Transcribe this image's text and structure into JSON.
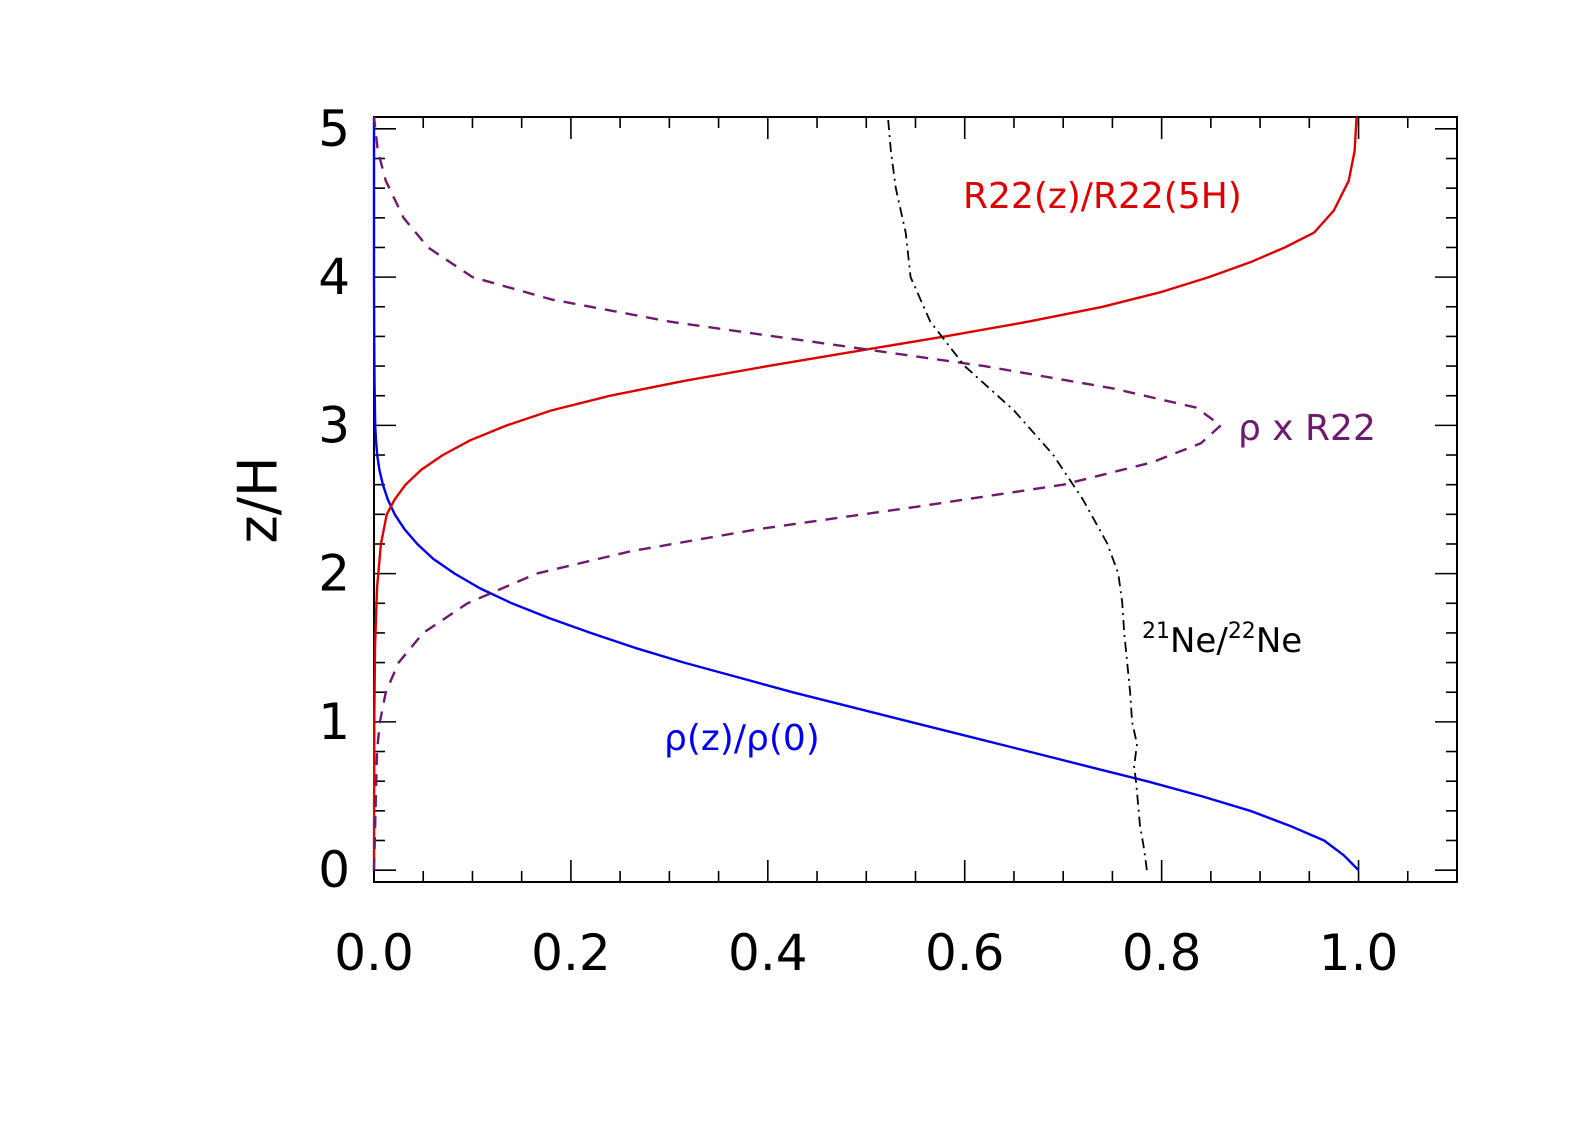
{
  "chart_data": {
    "type": "line",
    "title": "",
    "xlabel": "",
    "ylabel": "z/H",
    "xlim": [
      0.0,
      1.1
    ],
    "ylim": [
      -0.08,
      5.08
    ],
    "xticks": [
      0.0,
      0.2,
      0.4,
      0.6,
      0.8,
      1.0
    ],
    "xtick_labels": [
      "0.0",
      "0.2",
      "0.4",
      "0.6",
      "0.8",
      "1.0"
    ],
    "yticks": [
      0,
      1,
      2,
      3,
      4,
      5
    ],
    "ytick_labels": [
      "0",
      "1",
      "2",
      "3",
      "4",
      "5"
    ],
    "grid": false,
    "legend": "none",
    "series": [
      {
        "key": "density",
        "color": "#0000ee",
        "style": "solid",
        "points": [
          [
            1.0,
            0.0
          ],
          [
            0.985,
            0.1
          ],
          [
            0.965,
            0.2
          ],
          [
            0.93,
            0.3
          ],
          [
            0.89,
            0.4
          ],
          [
            0.84,
            0.5
          ],
          [
            0.785,
            0.6
          ],
          [
            0.725,
            0.7
          ],
          [
            0.665,
            0.8
          ],
          [
            0.605,
            0.9
          ],
          [
            0.545,
            1.0
          ],
          [
            0.485,
            1.1
          ],
          [
            0.425,
            1.2
          ],
          [
            0.37,
            1.3
          ],
          [
            0.315,
            1.4
          ],
          [
            0.265,
            1.5
          ],
          [
            0.22,
            1.6
          ],
          [
            0.178,
            1.7
          ],
          [
            0.14,
            1.8
          ],
          [
            0.108,
            1.9
          ],
          [
            0.082,
            2.0
          ],
          [
            0.06,
            2.1
          ],
          [
            0.044,
            2.2
          ],
          [
            0.031,
            2.3
          ],
          [
            0.021,
            2.4
          ],
          [
            0.014,
            2.5
          ],
          [
            0.009,
            2.6
          ],
          [
            0.0055,
            2.7
          ],
          [
            0.0033,
            2.8
          ],
          [
            0.002,
            2.9
          ],
          [
            0.0012,
            3.0
          ],
          [
            0.0005,
            3.3
          ],
          [
            0.0002,
            3.6
          ],
          [
            0.0,
            4.0
          ],
          [
            0.0,
            5.08
          ]
        ]
      },
      {
        "key": "ratio",
        "color": "#dd0000",
        "style": "solid",
        "points": [
          [
            0.0,
            0.0
          ],
          [
            0.0003,
            1.0
          ],
          [
            0.001,
            1.5
          ],
          [
            0.003,
            1.9
          ],
          [
            0.007,
            2.2
          ],
          [
            0.013,
            2.4
          ],
          [
            0.021,
            2.5
          ],
          [
            0.032,
            2.6
          ],
          [
            0.048,
            2.7
          ],
          [
            0.07,
            2.8
          ],
          [
            0.098,
            2.9
          ],
          [
            0.135,
            3.0
          ],
          [
            0.18,
            3.1
          ],
          [
            0.24,
            3.2
          ],
          [
            0.315,
            3.3
          ],
          [
            0.4,
            3.4
          ],
          [
            0.49,
            3.5
          ],
          [
            0.58,
            3.6
          ],
          [
            0.665,
            3.7
          ],
          [
            0.74,
            3.8
          ],
          [
            0.8,
            3.9
          ],
          [
            0.848,
            4.0
          ],
          [
            0.89,
            4.1
          ],
          [
            0.925,
            4.2
          ],
          [
            0.955,
            4.3
          ],
          [
            0.975,
            4.45
          ],
          [
            0.99,
            4.65
          ],
          [
            0.996,
            4.85
          ],
          [
            0.998,
            5.08
          ]
        ]
      },
      {
        "key": "product",
        "color": "#6e1a6e",
        "style": "dashed",
        "points": [
          [
            0.0,
            0.0
          ],
          [
            0.003,
            0.8
          ],
          [
            0.006,
            1.0
          ],
          [
            0.012,
            1.2
          ],
          [
            0.025,
            1.4
          ],
          [
            0.05,
            1.6
          ],
          [
            0.095,
            1.8
          ],
          [
            0.165,
            2.0
          ],
          [
            0.26,
            2.15
          ],
          [
            0.39,
            2.3
          ],
          [
            0.55,
            2.45
          ],
          [
            0.7,
            2.6
          ],
          [
            0.79,
            2.75
          ],
          [
            0.84,
            2.88
          ],
          [
            0.86,
            3.0
          ],
          [
            0.835,
            3.12
          ],
          [
            0.75,
            3.25
          ],
          [
            0.62,
            3.4
          ],
          [
            0.46,
            3.55
          ],
          [
            0.3,
            3.7
          ],
          [
            0.18,
            3.85
          ],
          [
            0.1,
            4.0
          ],
          [
            0.055,
            4.2
          ],
          [
            0.03,
            4.4
          ],
          [
            0.012,
            4.65
          ],
          [
            0.004,
            4.85
          ],
          [
            0.0,
            5.08
          ]
        ]
      },
      {
        "key": "isotope",
        "color": "#000000",
        "style": "dashdot",
        "points": [
          [
            0.785,
            0.0
          ],
          [
            0.782,
            0.15
          ],
          [
            0.778,
            0.3
          ],
          [
            0.776,
            0.45
          ],
          [
            0.774,
            0.6
          ],
          [
            0.772,
            0.7
          ],
          [
            0.775,
            0.85
          ],
          [
            0.77,
            1.0
          ],
          [
            0.768,
            1.2
          ],
          [
            0.765,
            1.4
          ],
          [
            0.762,
            1.6
          ],
          [
            0.76,
            1.8
          ],
          [
            0.756,
            2.0
          ],
          [
            0.745,
            2.2
          ],
          [
            0.72,
            2.5
          ],
          [
            0.69,
            2.8
          ],
          [
            0.65,
            3.1
          ],
          [
            0.6,
            3.4
          ],
          [
            0.565,
            3.7
          ],
          [
            0.545,
            4.0
          ],
          [
            0.54,
            4.3
          ],
          [
            0.53,
            4.6
          ],
          [
            0.525,
            4.85
          ],
          [
            0.522,
            5.08
          ]
        ]
      }
    ],
    "annotations": [
      {
        "key": "ratio",
        "text": "R22(z)/R22(5H)",
        "color": "#dd0000"
      },
      {
        "key": "product",
        "text": "ρ x R22",
        "color": "#6e1a6e"
      },
      {
        "key": "isotope",
        "sup1": "21",
        "base1": "Ne/",
        "sup2": "22",
        "base2": "Ne",
        "color": "#000000"
      },
      {
        "key": "density",
        "text": "ρ(z)/ρ(0)",
        "color": "#0000ee"
      }
    ]
  }
}
